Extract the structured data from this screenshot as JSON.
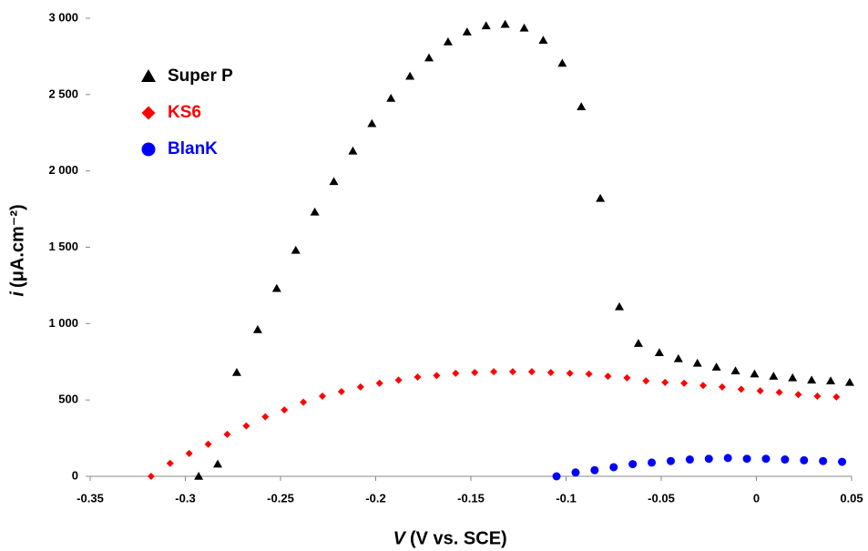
{
  "chart_data": {
    "type": "scatter",
    "x_label_symbol": "V",
    "x_label_unit": "(V vs. SCE)",
    "y_label_symbol": "i",
    "y_label_unit": "(μA.cm⁻²)",
    "xlim": [
      -0.35,
      0.05
    ],
    "xticks": [
      -0.35,
      -0.3,
      -0.25,
      -0.2,
      -0.15,
      -0.1,
      -0.05,
      0,
      0.05
    ],
    "ylim": [
      0,
      3000
    ],
    "yticks": [
      0,
      500,
      {
        "value": 1000,
        "label": "1 000"
      },
      {
        "value": 1500,
        "label": "1 500"
      },
      {
        "value": 2000,
        "label": "2 000"
      },
      {
        "value": 2500,
        "label": "2 500"
      },
      {
        "value": 3000,
        "label": "3 000"
      }
    ],
    "legend": "upper left",
    "series": [
      {
        "name": "Super P",
        "color": "#000000",
        "marker": "triangle",
        "x": [
          -0.293,
          -0.283,
          -0.273,
          -0.262,
          -0.252,
          -0.242,
          -0.232,
          -0.222,
          -0.212,
          -0.202,
          -0.192,
          -0.182,
          -0.172,
          -0.162,
          -0.152,
          -0.142,
          -0.132,
          -0.122,
          -0.112,
          -0.102,
          -0.092,
          -0.082,
          -0.072,
          -0.062,
          -0.051,
          -0.041,
          -0.031,
          -0.021,
          -0.011,
          -0.001,
          0.009,
          0.019,
          0.029,
          0.039,
          0.049
        ],
        "values": [
          0,
          80,
          680,
          960,
          1230,
          1480,
          1730,
          1930,
          2130,
          2310,
          2475,
          2620,
          2740,
          2845,
          2910,
          2950,
          2960,
          2935,
          2855,
          2705,
          2420,
          1820,
          1110,
          870,
          810,
          770,
          740,
          715,
          690,
          670,
          655,
          645,
          630,
          625,
          615
        ]
      },
      {
        "name": "KS6",
        "color": "#ff0000",
        "marker": "diamond",
        "x": [
          -0.318,
          -0.308,
          -0.298,
          -0.288,
          -0.278,
          -0.268,
          -0.258,
          -0.248,
          -0.238,
          -0.228,
          -0.218,
          -0.208,
          -0.198,
          -0.188,
          -0.178,
          -0.168,
          -0.158,
          -0.148,
          -0.138,
          -0.128,
          -0.118,
          -0.108,
          -0.098,
          -0.088,
          -0.078,
          -0.068,
          -0.058,
          -0.048,
          -0.038,
          -0.028,
          -0.018,
          -0.008,
          0.002,
          0.012,
          0.022,
          0.032,
          0.042
        ],
        "values": [
          0,
          85,
          150,
          210,
          275,
          330,
          390,
          435,
          485,
          525,
          555,
          585,
          610,
          630,
          650,
          660,
          675,
          680,
          685,
          685,
          685,
          680,
          675,
          670,
          655,
          645,
          625,
          615,
          610,
          595,
          585,
          570,
          560,
          550,
          535,
          525,
          520
        ]
      },
      {
        "name": "BlanK",
        "color": "#0000ff",
        "marker": "circle",
        "x": [
          -0.105,
          -0.095,
          -0.085,
          -0.075,
          -0.065,
          -0.055,
          -0.045,
          -0.035,
          -0.025,
          -0.015,
          -0.005,
          0.005,
          0.015,
          0.025,
          0.035,
          0.045
        ],
        "values": [
          0,
          25,
          40,
          60,
          80,
          90,
          100,
          110,
          115,
          120,
          115,
          115,
          110,
          105,
          100,
          95
        ]
      }
    ]
  }
}
